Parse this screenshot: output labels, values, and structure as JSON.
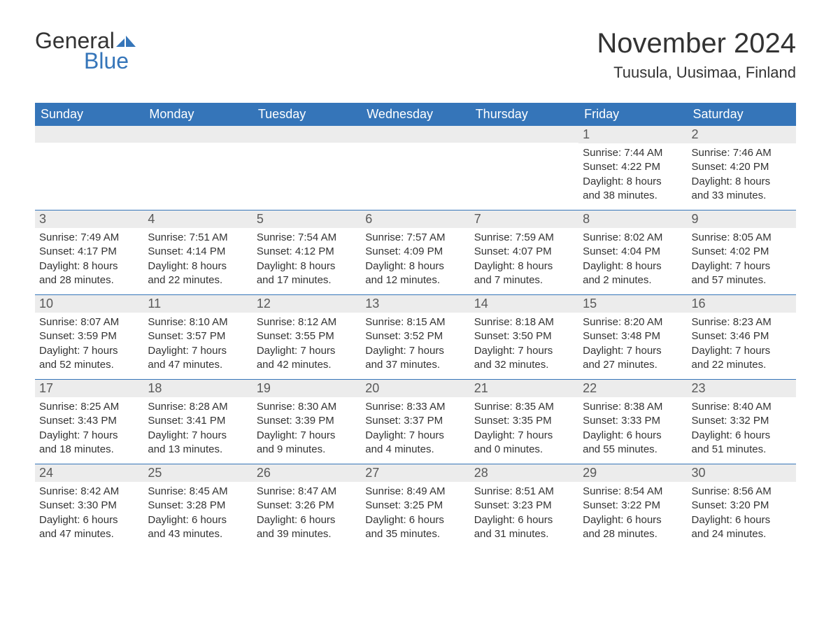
{
  "logo": {
    "text_general": "General",
    "text_blue": "Blue",
    "accent_color": "#3575b9"
  },
  "title": "November 2024",
  "location": "Tuusula, Uusimaa, Finland",
  "colors": {
    "header_bg": "#3575b9",
    "header_text": "#ffffff",
    "daynum_bg": "#ececec",
    "daynum_text": "#595959",
    "body_text": "#333333",
    "page_bg": "#ffffff",
    "rule": "#3575b9"
  },
  "fonts": {
    "title_size_pt": 30,
    "location_size_pt": 16,
    "day_header_size_pt": 14,
    "daynum_size_pt": 14,
    "body_size_pt": 11
  },
  "day_headers": [
    "Sunday",
    "Monday",
    "Tuesday",
    "Wednesday",
    "Thursday",
    "Friday",
    "Saturday"
  ],
  "weeks": [
    [
      {
        "day": "",
        "sunrise": "",
        "sunset": "",
        "daylight1": "",
        "daylight2": ""
      },
      {
        "day": "",
        "sunrise": "",
        "sunset": "",
        "daylight1": "",
        "daylight2": ""
      },
      {
        "day": "",
        "sunrise": "",
        "sunset": "",
        "daylight1": "",
        "daylight2": ""
      },
      {
        "day": "",
        "sunrise": "",
        "sunset": "",
        "daylight1": "",
        "daylight2": ""
      },
      {
        "day": "",
        "sunrise": "",
        "sunset": "",
        "daylight1": "",
        "daylight2": ""
      },
      {
        "day": "1",
        "sunrise": "Sunrise: 7:44 AM",
        "sunset": "Sunset: 4:22 PM",
        "daylight1": "Daylight: 8 hours",
        "daylight2": "and 38 minutes."
      },
      {
        "day": "2",
        "sunrise": "Sunrise: 7:46 AM",
        "sunset": "Sunset: 4:20 PM",
        "daylight1": "Daylight: 8 hours",
        "daylight2": "and 33 minutes."
      }
    ],
    [
      {
        "day": "3",
        "sunrise": "Sunrise: 7:49 AM",
        "sunset": "Sunset: 4:17 PM",
        "daylight1": "Daylight: 8 hours",
        "daylight2": "and 28 minutes."
      },
      {
        "day": "4",
        "sunrise": "Sunrise: 7:51 AM",
        "sunset": "Sunset: 4:14 PM",
        "daylight1": "Daylight: 8 hours",
        "daylight2": "and 22 minutes."
      },
      {
        "day": "5",
        "sunrise": "Sunrise: 7:54 AM",
        "sunset": "Sunset: 4:12 PM",
        "daylight1": "Daylight: 8 hours",
        "daylight2": "and 17 minutes."
      },
      {
        "day": "6",
        "sunrise": "Sunrise: 7:57 AM",
        "sunset": "Sunset: 4:09 PM",
        "daylight1": "Daylight: 8 hours",
        "daylight2": "and 12 minutes."
      },
      {
        "day": "7",
        "sunrise": "Sunrise: 7:59 AM",
        "sunset": "Sunset: 4:07 PM",
        "daylight1": "Daylight: 8 hours",
        "daylight2": "and 7 minutes."
      },
      {
        "day": "8",
        "sunrise": "Sunrise: 8:02 AM",
        "sunset": "Sunset: 4:04 PM",
        "daylight1": "Daylight: 8 hours",
        "daylight2": "and 2 minutes."
      },
      {
        "day": "9",
        "sunrise": "Sunrise: 8:05 AM",
        "sunset": "Sunset: 4:02 PM",
        "daylight1": "Daylight: 7 hours",
        "daylight2": "and 57 minutes."
      }
    ],
    [
      {
        "day": "10",
        "sunrise": "Sunrise: 8:07 AM",
        "sunset": "Sunset: 3:59 PM",
        "daylight1": "Daylight: 7 hours",
        "daylight2": "and 52 minutes."
      },
      {
        "day": "11",
        "sunrise": "Sunrise: 8:10 AM",
        "sunset": "Sunset: 3:57 PM",
        "daylight1": "Daylight: 7 hours",
        "daylight2": "and 47 minutes."
      },
      {
        "day": "12",
        "sunrise": "Sunrise: 8:12 AM",
        "sunset": "Sunset: 3:55 PM",
        "daylight1": "Daylight: 7 hours",
        "daylight2": "and 42 minutes."
      },
      {
        "day": "13",
        "sunrise": "Sunrise: 8:15 AM",
        "sunset": "Sunset: 3:52 PM",
        "daylight1": "Daylight: 7 hours",
        "daylight2": "and 37 minutes."
      },
      {
        "day": "14",
        "sunrise": "Sunrise: 8:18 AM",
        "sunset": "Sunset: 3:50 PM",
        "daylight1": "Daylight: 7 hours",
        "daylight2": "and 32 minutes."
      },
      {
        "day": "15",
        "sunrise": "Sunrise: 8:20 AM",
        "sunset": "Sunset: 3:48 PM",
        "daylight1": "Daylight: 7 hours",
        "daylight2": "and 27 minutes."
      },
      {
        "day": "16",
        "sunrise": "Sunrise: 8:23 AM",
        "sunset": "Sunset: 3:46 PM",
        "daylight1": "Daylight: 7 hours",
        "daylight2": "and 22 minutes."
      }
    ],
    [
      {
        "day": "17",
        "sunrise": "Sunrise: 8:25 AM",
        "sunset": "Sunset: 3:43 PM",
        "daylight1": "Daylight: 7 hours",
        "daylight2": "and 18 minutes."
      },
      {
        "day": "18",
        "sunrise": "Sunrise: 8:28 AM",
        "sunset": "Sunset: 3:41 PM",
        "daylight1": "Daylight: 7 hours",
        "daylight2": "and 13 minutes."
      },
      {
        "day": "19",
        "sunrise": "Sunrise: 8:30 AM",
        "sunset": "Sunset: 3:39 PM",
        "daylight1": "Daylight: 7 hours",
        "daylight2": "and 9 minutes."
      },
      {
        "day": "20",
        "sunrise": "Sunrise: 8:33 AM",
        "sunset": "Sunset: 3:37 PM",
        "daylight1": "Daylight: 7 hours",
        "daylight2": "and 4 minutes."
      },
      {
        "day": "21",
        "sunrise": "Sunrise: 8:35 AM",
        "sunset": "Sunset: 3:35 PM",
        "daylight1": "Daylight: 7 hours",
        "daylight2": "and 0 minutes."
      },
      {
        "day": "22",
        "sunrise": "Sunrise: 8:38 AM",
        "sunset": "Sunset: 3:33 PM",
        "daylight1": "Daylight: 6 hours",
        "daylight2": "and 55 minutes."
      },
      {
        "day": "23",
        "sunrise": "Sunrise: 8:40 AM",
        "sunset": "Sunset: 3:32 PM",
        "daylight1": "Daylight: 6 hours",
        "daylight2": "and 51 minutes."
      }
    ],
    [
      {
        "day": "24",
        "sunrise": "Sunrise: 8:42 AM",
        "sunset": "Sunset: 3:30 PM",
        "daylight1": "Daylight: 6 hours",
        "daylight2": "and 47 minutes."
      },
      {
        "day": "25",
        "sunrise": "Sunrise: 8:45 AM",
        "sunset": "Sunset: 3:28 PM",
        "daylight1": "Daylight: 6 hours",
        "daylight2": "and 43 minutes."
      },
      {
        "day": "26",
        "sunrise": "Sunrise: 8:47 AM",
        "sunset": "Sunset: 3:26 PM",
        "daylight1": "Daylight: 6 hours",
        "daylight2": "and 39 minutes."
      },
      {
        "day": "27",
        "sunrise": "Sunrise: 8:49 AM",
        "sunset": "Sunset: 3:25 PM",
        "daylight1": "Daylight: 6 hours",
        "daylight2": "and 35 minutes."
      },
      {
        "day": "28",
        "sunrise": "Sunrise: 8:51 AM",
        "sunset": "Sunset: 3:23 PM",
        "daylight1": "Daylight: 6 hours",
        "daylight2": "and 31 minutes."
      },
      {
        "day": "29",
        "sunrise": "Sunrise: 8:54 AM",
        "sunset": "Sunset: 3:22 PM",
        "daylight1": "Daylight: 6 hours",
        "daylight2": "and 28 minutes."
      },
      {
        "day": "30",
        "sunrise": "Sunrise: 8:56 AM",
        "sunset": "Sunset: 3:20 PM",
        "daylight1": "Daylight: 6 hours",
        "daylight2": "and 24 minutes."
      }
    ]
  ]
}
